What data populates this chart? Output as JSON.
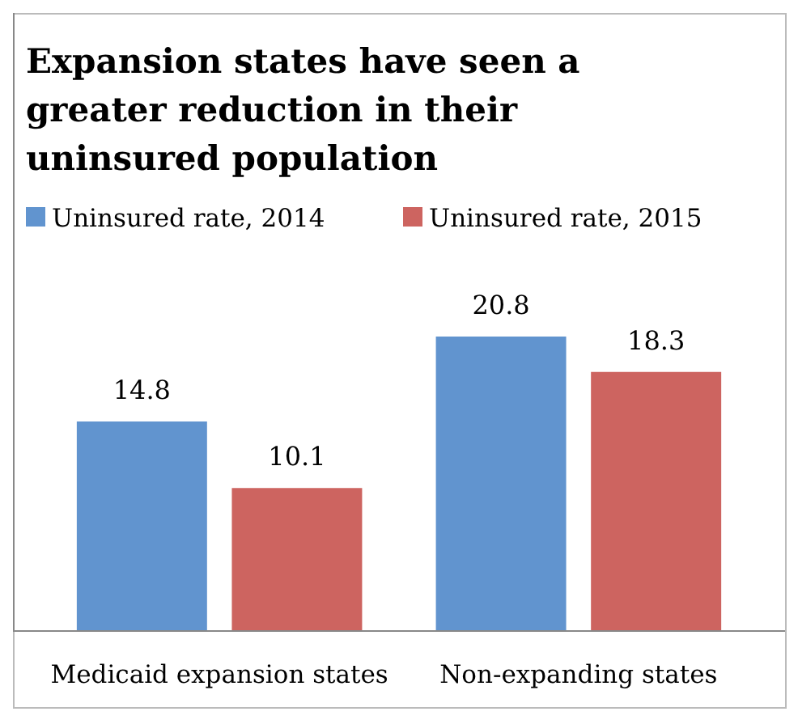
{
  "chart_data": {
    "type": "bar",
    "title": "Expansion states have seen a greater reduction in their uninsured population",
    "categories": [
      "Medicaid expansion states",
      "Non-expanding states"
    ],
    "series": [
      {
        "name": "Uninsured rate, 2014",
        "color": "#6194cf",
        "values": [
          14.8,
          20.8
        ]
      },
      {
        "name": "Uninsured rate, 2015",
        "color": "#cd6460",
        "values": [
          10.1,
          18.3
        ]
      }
    ],
    "relative": false,
    "data_labels": true,
    "legend": "top",
    "grid": false
  }
}
